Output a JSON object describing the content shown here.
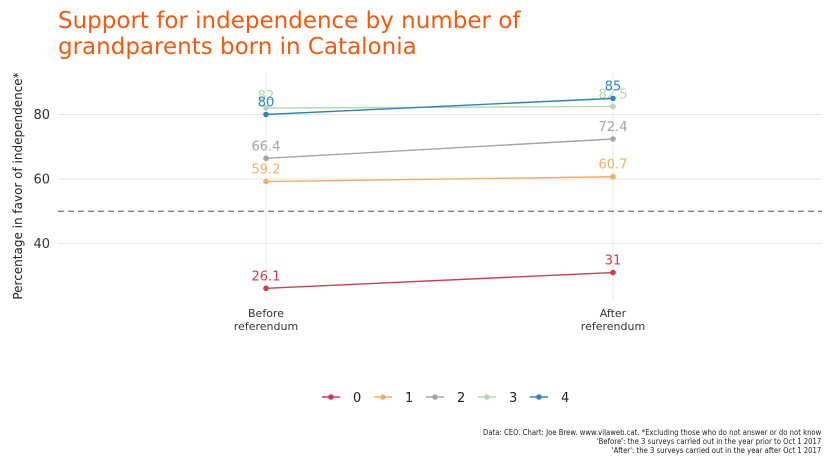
{
  "chart_data": {
    "type": "line",
    "title_lines": [
      "Support for independence by number of",
      "grandparents born in Catalonia"
    ],
    "ylabel": "Percentage in favor of independence*",
    "categories": [
      [
        "Before",
        "referendum"
      ],
      [
        "After",
        "referendum"
      ]
    ],
    "ylim": [
      20,
      95
    ],
    "yticks": [
      40,
      60,
      80
    ],
    "reference_line": 50,
    "grid": true,
    "legend_position": "bottom",
    "series": [
      {
        "name": "0",
        "values": [
          26.1,
          31
        ],
        "labels": [
          "26.1",
          "31"
        ],
        "color": "#d43a4f"
      },
      {
        "name": "1",
        "values": [
          59.2,
          60.7
        ],
        "labels": [
          "59.2",
          "60.7"
        ],
        "color": "#f4ad63"
      },
      {
        "name": "2",
        "values": [
          66.4,
          72.4
        ],
        "labels": [
          "66.4",
          "72.4"
        ],
        "color": "#a5a5a5"
      },
      {
        "name": "3",
        "values": [
          82,
          82.5
        ],
        "labels": [
          "82",
          "82.5"
        ],
        "color": "#b1dbac"
      },
      {
        "name": "4",
        "values": [
          80,
          85
        ],
        "labels": [
          "80",
          "85"
        ],
        "color": "#2f83bb"
      }
    ]
  },
  "caption": [
    "Data: CEO. Chart: Joe Brew. www.vilaweb.cat. *Excluding those who do not answer or do not know",
    "'Before': the 3 surveys carried out in the year prior to Oct 1 2017",
    "'After': the 3 surveys carried out in the year after Oct 1 2017"
  ]
}
